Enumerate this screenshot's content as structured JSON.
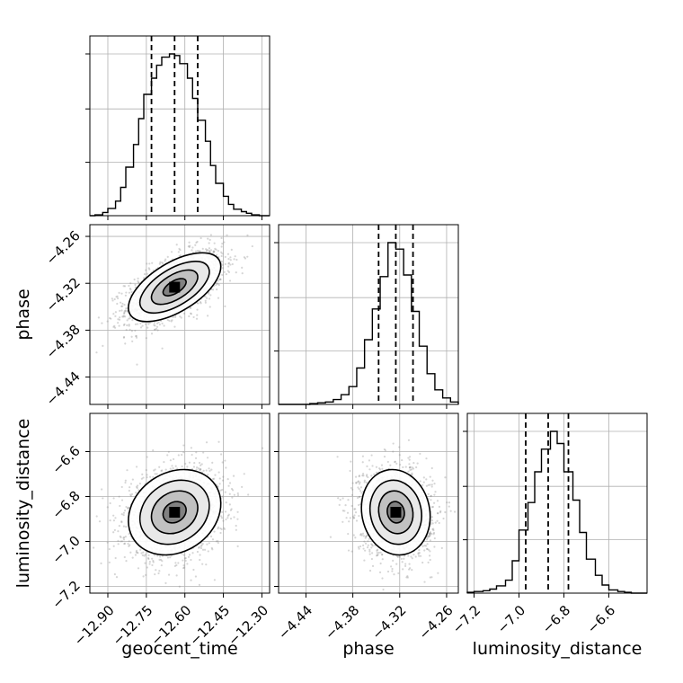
{
  "chart_data": {
    "type": "corner",
    "grid": true,
    "parameters": [
      {
        "key": "geocent_time",
        "label": "geocent_time",
        "range": [
          -12.97,
          -12.27
        ],
        "ticks": [
          -12.9,
          -12.75,
          -12.6,
          -12.45,
          -12.3
        ],
        "tick_labels": [
          "−12.90",
          "−12.75",
          "−12.60",
          "−12.45",
          "−12.30"
        ],
        "quantiles": [
          -12.73,
          -12.64,
          -12.55
        ],
        "histogram": [
          {
            "x0": -12.97,
            "x1": -12.95,
            "count": 0
          },
          {
            "x0": -12.95,
            "x1": -12.92,
            "count": 1
          },
          {
            "x0": -12.92,
            "x1": -12.9,
            "count": 4
          },
          {
            "x0": -12.9,
            "x1": -12.87,
            "count": 9
          },
          {
            "x0": -12.87,
            "x1": -12.85,
            "count": 18
          },
          {
            "x0": -12.85,
            "x1": -12.83,
            "count": 35
          },
          {
            "x0": -12.83,
            "x1": -12.8,
            "count": 60
          },
          {
            "x0": -12.8,
            "x1": -12.78,
            "count": 88
          },
          {
            "x0": -12.78,
            "x1": -12.76,
            "count": 120
          },
          {
            "x0": -12.76,
            "x1": -12.73,
            "count": 150
          },
          {
            "x0": -12.73,
            "x1": -12.71,
            "count": 170
          },
          {
            "x0": -12.71,
            "x1": -12.69,
            "count": 186
          },
          {
            "x0": -12.69,
            "x1": -12.66,
            "count": 196
          },
          {
            "x0": -12.66,
            "x1": -12.64,
            "count": 200
          },
          {
            "x0": -12.64,
            "x1": -12.62,
            "count": 198
          },
          {
            "x0": -12.62,
            "x1": -12.59,
            "count": 188
          },
          {
            "x0": -12.59,
            "x1": -12.57,
            "count": 170
          },
          {
            "x0": -12.57,
            "x1": -12.55,
            "count": 145
          },
          {
            "x0": -12.55,
            "x1": -12.52,
            "count": 118
          },
          {
            "x0": -12.52,
            "x1": -12.5,
            "count": 92
          },
          {
            "x0": -12.5,
            "x1": -12.48,
            "count": 62
          },
          {
            "x0": -12.48,
            "x1": -12.45,
            "count": 40
          },
          {
            "x0": -12.45,
            "x1": -12.43,
            "count": 24
          },
          {
            "x0": -12.43,
            "x1": -12.41,
            "count": 14
          },
          {
            "x0": -12.41,
            "x1": -12.38,
            "count": 8
          },
          {
            "x0": -12.38,
            "x1": -12.36,
            "count": 5
          },
          {
            "x0": -12.36,
            "x1": -12.34,
            "count": 3
          },
          {
            "x0": -12.34,
            "x1": -12.31,
            "count": 1
          },
          {
            "x0": -12.31,
            "x1": -12.29,
            "count": 0
          },
          {
            "x0": -12.29,
            "x1": -12.27,
            "count": 0
          }
        ]
      },
      {
        "key": "phase",
        "label": "phase",
        "range": [
          -4.475,
          -4.245
        ],
        "ticks": [
          -4.44,
          -4.38,
          -4.32,
          -4.26
        ],
        "tick_labels": [
          "−4.44",
          "−4.38",
          "−4.32",
          "−4.26"
        ],
        "quantiles": [
          -4.347,
          -4.325,
          -4.303
        ],
        "histogram": [
          {
            "x0": -4.475,
            "x1": -4.465,
            "count": 0
          },
          {
            "x0": -4.465,
            "x1": -4.455,
            "count": 0
          },
          {
            "x0": -4.455,
            "x1": -4.445,
            "count": 0
          },
          {
            "x0": -4.445,
            "x1": -4.435,
            "count": 0
          },
          {
            "x0": -4.435,
            "x1": -4.425,
            "count": 1
          },
          {
            "x0": -4.425,
            "x1": -4.415,
            "count": 2
          },
          {
            "x0": -4.415,
            "x1": -4.405,
            "count": 3
          },
          {
            "x0": -4.405,
            "x1": -4.395,
            "count": 6
          },
          {
            "x0": -4.395,
            "x1": -4.385,
            "count": 12
          },
          {
            "x0": -4.385,
            "x1": -4.375,
            "count": 22
          },
          {
            "x0": -4.375,
            "x1": -4.365,
            "count": 45
          },
          {
            "x0": -4.365,
            "x1": -4.355,
            "count": 80
          },
          {
            "x0": -4.355,
            "x1": -4.345,
            "count": 118
          },
          {
            "x0": -4.345,
            "x1": -4.335,
            "count": 158
          },
          {
            "x0": -4.335,
            "x1": -4.325,
            "count": 200
          },
          {
            "x0": -4.325,
            "x1": -4.315,
            "count": 192
          },
          {
            "x0": -4.315,
            "x1": -4.305,
            "count": 160
          },
          {
            "x0": -4.305,
            "x1": -4.295,
            "count": 115
          },
          {
            "x0": -4.295,
            "x1": -4.285,
            "count": 72
          },
          {
            "x0": -4.285,
            "x1": -4.275,
            "count": 38
          },
          {
            "x0": -4.275,
            "x1": -4.265,
            "count": 18
          },
          {
            "x0": -4.265,
            "x1": -4.255,
            "count": 8
          },
          {
            "x0": -4.255,
            "x1": -4.245,
            "count": 3
          }
        ]
      },
      {
        "key": "luminosity_distance",
        "label": "luminosity_distance",
        "range": [
          -7.23,
          -6.43
        ],
        "ticks": [
          -7.2,
          -7.0,
          -6.8,
          -6.6
        ],
        "tick_labels": [
          "−7.2",
          "−7.0",
          "−6.8",
          "−6.6"
        ],
        "quantiles": [
          -6.97,
          -6.87,
          -6.78
        ],
        "histogram": [
          {
            "x0": -7.23,
            "x1": -7.2,
            "count": 1
          },
          {
            "x0": -7.2,
            "x1": -7.16,
            "count": 2
          },
          {
            "x0": -7.16,
            "x1": -7.13,
            "count": 3
          },
          {
            "x0": -7.13,
            "x1": -7.1,
            "count": 5
          },
          {
            "x0": -7.1,
            "x1": -7.06,
            "count": 9
          },
          {
            "x0": -7.06,
            "x1": -7.03,
            "count": 16
          },
          {
            "x0": -7.03,
            "x1": -7.0,
            "count": 40
          },
          {
            "x0": -7.0,
            "x1": -6.96,
            "count": 78
          },
          {
            "x0": -6.96,
            "x1": -6.93,
            "count": 112
          },
          {
            "x0": -6.93,
            "x1": -6.9,
            "count": 150
          },
          {
            "x0": -6.9,
            "x1": -6.86,
            "count": 178
          },
          {
            "x0": -6.86,
            "x1": -6.83,
            "count": 200
          },
          {
            "x0": -6.83,
            "x1": -6.8,
            "count": 185
          },
          {
            "x0": -6.8,
            "x1": -6.76,
            "count": 150
          },
          {
            "x0": -6.76,
            "x1": -6.73,
            "count": 115
          },
          {
            "x0": -6.73,
            "x1": -6.7,
            "count": 75
          },
          {
            "x0": -6.7,
            "x1": -6.66,
            "count": 42
          },
          {
            "x0": -6.66,
            "x1": -6.63,
            "count": 22
          },
          {
            "x0": -6.63,
            "x1": -6.6,
            "count": 10
          },
          {
            "x0": -6.6,
            "x1": -6.56,
            "count": 4
          },
          {
            "x0": -6.56,
            "x1": -6.53,
            "count": 2
          },
          {
            "x0": -6.53,
            "x1": -6.5,
            "count": 1
          },
          {
            "x0": -6.5,
            "x1": -6.46,
            "count": 0
          },
          {
            "x0": -6.46,
            "x1": -6.43,
            "count": 0
          }
        ]
      }
    ],
    "correlations": {
      "geocent_time|phase": 0.6,
      "geocent_time|luminosity_distance": 0.2,
      "phase|luminosity_distance": -0.1
    },
    "contour_levels": [
      0.5,
      1.0,
      1.5,
      2.0
    ]
  }
}
